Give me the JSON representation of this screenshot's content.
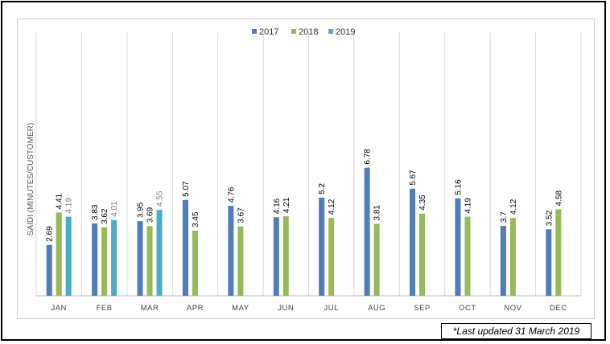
{
  "colors": {
    "2017": "#4f7cba",
    "2018": "#97b957",
    "2019": "#4bacc6"
  },
  "chart_data": {
    "type": "bar",
    "title": "",
    "xlabel": "",
    "ylabel": "SAIDI (MINUTES/CUSTOMER)",
    "ylim": [
      0,
      8
    ],
    "grid": "vertical",
    "legend_position": "top",
    "categories": [
      "JAN",
      "FEB",
      "MAR",
      "APR",
      "MAY",
      "JUN",
      "JUL",
      "AUG",
      "SEP",
      "OCT",
      "NOV",
      "DEC"
    ],
    "series": [
      {
        "name": "2017",
        "values": [
          2.69,
          3.83,
          3.95,
          5.07,
          4.76,
          4.16,
          5.2,
          6.78,
          5.67,
          5.16,
          3.7,
          3.52
        ]
      },
      {
        "name": "2018",
        "values": [
          4.41,
          3.62,
          3.69,
          3.45,
          3.67,
          4.21,
          4.12,
          3.81,
          4.35,
          4.19,
          4.12,
          4.58
        ]
      },
      {
        "name": "2019",
        "values": [
          4.19,
          4.01,
          4.55,
          null,
          null,
          null,
          null,
          null,
          null,
          null,
          null,
          null
        ]
      }
    ]
  },
  "footnote": "*Last updated 31 March 2019"
}
